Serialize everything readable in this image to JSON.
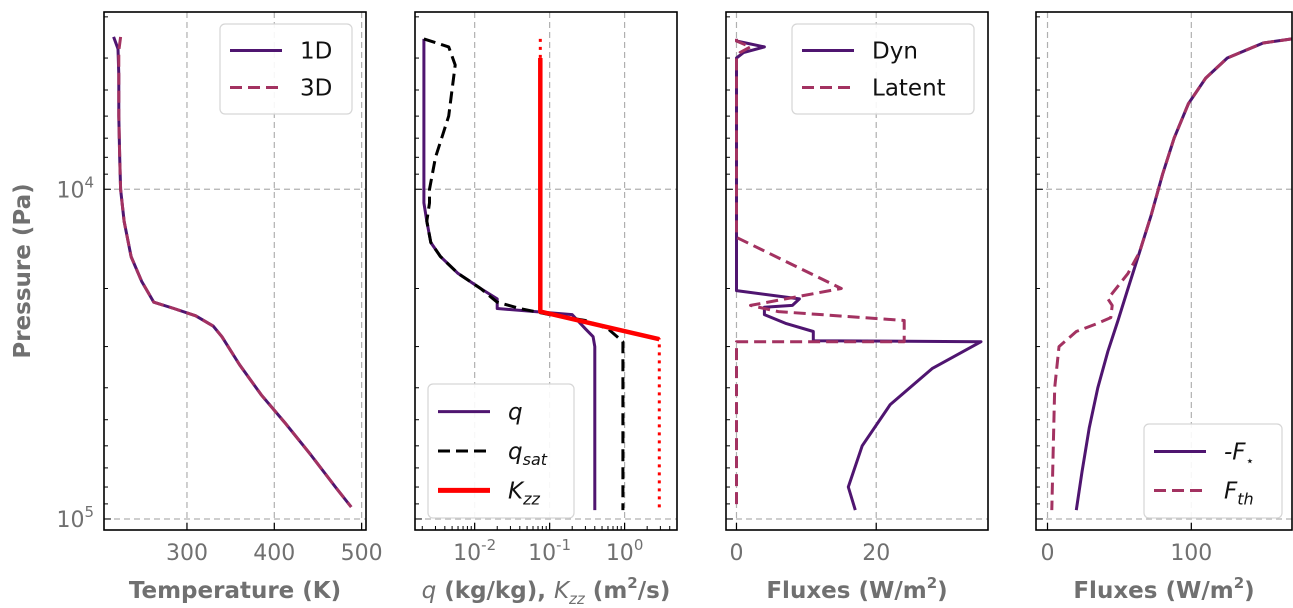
{
  "colors": {
    "purple": "#4f1570",
    "magenta": "#a33261",
    "red": "#ff0000",
    "black": "#000000",
    "grid": "#b0b0b0"
  },
  "ylabel": "Pressure (Pa)",
  "ytick_labels": [
    "10^4",
    "10^5"
  ],
  "chart_data": [
    {
      "type": "line",
      "xlabel": "Temperature (K)",
      "xlim": [
        205,
        505
      ],
      "xticks": [
        300,
        400,
        500
      ],
      "xtick_labels": [
        "300",
        "400",
        "500"
      ],
      "yscale": "log",
      "yaxis": "inverted",
      "ylim": [
        108000,
        2900
      ],
      "ylabel": "Pressure (Pa)",
      "legend": "top-right",
      "series": [
        {
          "name": "1D",
          "style": "solid",
          "color": "#4f1570",
          "x": [
            216,
            221,
            222,
            222,
            223,
            224,
            228,
            236,
            248,
            262,
            285,
            310,
            330,
            340,
            360,
            385,
            412,
            442,
            470,
            488
          ],
          "y": [
            3450,
            3750,
            4500,
            6000,
            8000,
            10000,
            12500,
            16000,
            19000,
            22000,
            23000,
            24200,
            26000,
            28000,
            34000,
            42000,
            51000,
            64000,
            80000,
            92000
          ]
        },
        {
          "name": "3D",
          "style": "dashed",
          "color": "#a33261",
          "x": [
            224,
            222,
            222,
            223,
            224,
            228,
            236,
            248,
            262,
            285,
            310,
            330,
            340,
            360,
            385,
            412,
            442,
            470,
            488
          ],
          "y": [
            3450,
            3800,
            6000,
            8000,
            10000,
            12500,
            16000,
            19000,
            22000,
            23000,
            24200,
            26000,
            28000,
            34000,
            42000,
            51000,
            64000,
            80000,
            92000
          ]
        }
      ]
    },
    {
      "type": "line",
      "xlabel": "q (kg/kg), K_zz (m^2/s)",
      "xlabel_parts": [
        "q",
        " (kg/kg), ",
        "K",
        "zz",
        " (m",
        "2",
        "/s)"
      ],
      "xscale": "log",
      "xlim": [
        0.0016,
        5
      ],
      "xticks": [
        0.01,
        0.1,
        1
      ],
      "xtick_labels": [
        "10^-2",
        "10^-1",
        "10^0"
      ],
      "yscale": "log",
      "yaxis": "inverted",
      "ylim": [
        108000,
        2900
      ],
      "legend": "bottom-left",
      "series": [
        {
          "name": "q",
          "name_tex": "q",
          "style": "solid",
          "color": "#4f1570",
          "x": [
            0.0021,
            0.0021,
            0.0021,
            0.0021,
            0.0021,
            0.0021,
            0.0021,
            0.0021,
            0.0021,
            0.0023,
            0.0026,
            0.0035,
            0.006,
            0.012,
            0.02,
            0.02,
            0.2,
            0.3,
            0.38,
            0.4,
            0.4,
            0.4,
            0.4
          ],
          "y": [
            3500,
            4000,
            5000,
            6000,
            7000,
            8000,
            9000,
            10000,
            11000,
            12500,
            14500,
            16000,
            18000,
            20000,
            21500,
            23000,
            24000,
            26500,
            28000,
            30000,
            40000,
            70000,
            94000
          ]
        },
        {
          "name": "q_sat",
          "name_tex": "qsat",
          "style": "dashed",
          "color": "#000000",
          "x": [
            0.0021,
            0.0045,
            0.0055,
            0.0045,
            0.003,
            0.0025,
            0.0025,
            0.0023,
            0.0026,
            0.0035,
            0.006,
            0.012,
            0.02,
            0.04,
            0.1,
            0.3,
            0.6,
            0.95,
            0.95,
            0.95,
            0.95
          ],
          "y": [
            3500,
            3700,
            4200,
            6000,
            8000,
            10000,
            11000,
            12500,
            14500,
            16000,
            18000,
            20000,
            22000,
            23000,
            24000,
            25000,
            26500,
            29000,
            40000,
            70000,
            94000
          ]
        },
        {
          "name": "K_zz",
          "name_tex": "Kzz",
          "style": "solid",
          "color": "#ff0000",
          "x": [
            0.075,
            0.075,
            0.075,
            0.075,
            2.9
          ],
          "y": [
            4000,
            7000,
            13000,
            23500,
            28500
          ]
        },
        {
          "name": "K_zz (extension)",
          "style": "dotted",
          "color": "#ff0000",
          "x": [
            0.075,
            0.075,
            0.075,
            0.075,
            2.9,
            2.9
          ],
          "y": [
            3500,
            4000,
            13000,
            23500,
            28500,
            94000
          ]
        }
      ]
    },
    {
      "type": "line",
      "xlabel": "Fluxes (W/m^2)",
      "xlabel_parts": [
        "Fluxes (W/m",
        "2",
        ")"
      ],
      "xlim": [
        -1.5,
        36
      ],
      "xticks": [
        0,
        20
      ],
      "xtick_labels": [
        "0",
        "20"
      ],
      "yscale": "log",
      "yaxis": "inverted",
      "ylim": [
        108000,
        2900
      ],
      "legend": "top-right",
      "series": [
        {
          "name": "Dyn",
          "style": "solid",
          "color": "#4f1570",
          "x": [
            0,
            0,
            4,
            1,
            0,
            0,
            0,
            0,
            0,
            0,
            0,
            0,
            0,
            9,
            8,
            4,
            4,
            7,
            11,
            11,
            35,
            28,
            22,
            18,
            16,
            17
          ],
          "y": [
            3500,
            3550,
            3700,
            3850,
            4000,
            6000,
            10000,
            14000,
            15000,
            19000,
            19800,
            20000,
            20300,
            21500,
            22500,
            22800,
            24000,
            25500,
            27000,
            28800,
            29000,
            35000,
            45000,
            60000,
            80000,
            94000
          ]
        },
        {
          "name": "Latent",
          "style": "dashed",
          "color": "#a33261",
          "x": [
            0,
            0,
            2,
            0.5,
            0,
            0,
            0,
            15,
            2,
            6,
            24,
            24,
            0,
            0,
            0
          ],
          "y": [
            3500,
            3550,
            3700,
            3850,
            4000,
            8000,
            14000,
            20000,
            22500,
            23500,
            25000,
            29000,
            29000,
            60000,
            94000
          ]
        }
      ]
    },
    {
      "type": "line",
      "xlabel": "Fluxes (W/m^2)",
      "xlabel_parts": [
        "Fluxes (W/m",
        "2",
        ")"
      ],
      "xlim": [
        -8,
        170
      ],
      "xticks": [
        0,
        100
      ],
      "xtick_labels": [
        "0",
        "100"
      ],
      "yscale": "log",
      "yaxis": "inverted",
      "ylim": [
        108000,
        2900
      ],
      "legend": "bottom-right",
      "series": [
        {
          "name": "-F_star",
          "name_tex": "-F*",
          "style": "solid",
          "color": "#4f1570",
          "x": [
            170,
            150,
            125,
            110,
            98,
            88,
            80,
            72,
            64,
            56,
            49,
            42,
            35,
            29,
            24,
            20
          ],
          "y": [
            3500,
            3600,
            4000,
            4600,
            5500,
            7000,
            9000,
            12000,
            15500,
            20000,
            25000,
            31000,
            40000,
            53000,
            72000,
            94000
          ]
        },
        {
          "name": "F_th",
          "name_tex": "Fth",
          "style": "dashed",
          "color": "#a33261",
          "x": [
            170,
            150,
            125,
            110,
            98,
            88,
            80,
            72,
            64,
            56,
            42,
            45,
            44,
            35,
            20,
            8,
            5,
            4,
            3
          ],
          "y": [
            3500,
            3600,
            4000,
            4600,
            5500,
            7000,
            9000,
            12000,
            15500,
            18000,
            21500,
            22500,
            24500,
            25500,
            27000,
            30000,
            40000,
            60000,
            94000
          ]
        }
      ]
    }
  ]
}
